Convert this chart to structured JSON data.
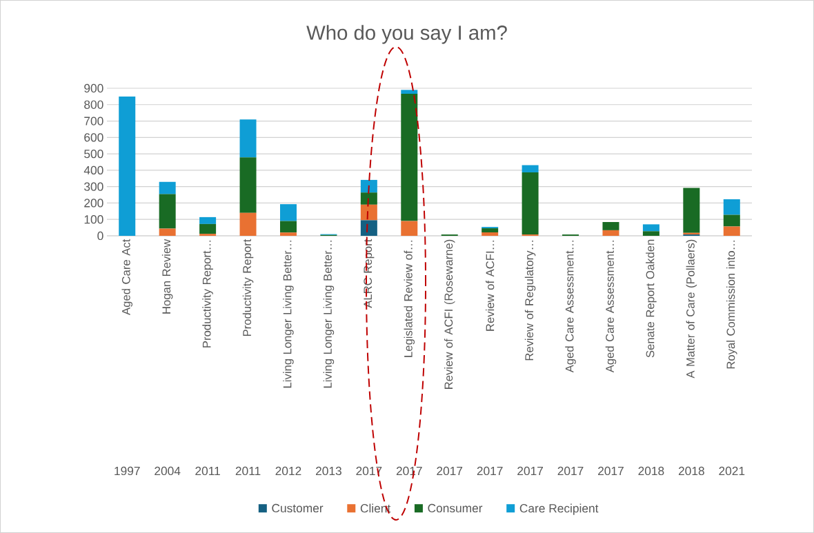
{
  "chart_data": {
    "type": "bar",
    "title": "Who do you say I am?",
    "stacked": true,
    "grid": "y",
    "legend": "bottom",
    "categories": [
      "Aged Care Act",
      "Hogan Review",
      "Productivity Report…",
      "Productivity Report",
      "Living Longer Living Better…",
      "Living Longer Living Better…",
      "ALRC Report",
      "Legislated Review of…",
      "Review of ACFI (Rosewarne)",
      "Review of ACFI…",
      "Review of Regulatory…",
      "Aged Care Assessment…",
      "Aged Care Assessment…",
      "Senate Report Oakden",
      "A Matter of Care (Pollaers)",
      "Royal Commission into…"
    ],
    "annotations": [
      "1997",
      "2004",
      "2011",
      "2011",
      "2012",
      "2013",
      "2017",
      "2017",
      "2017",
      "2017",
      "2017",
      "2017",
      "2017",
      "2018",
      "2018",
      "2021"
    ],
    "ylim": [
      0,
      900
    ],
    "yticks": [
      0,
      100,
      200,
      300,
      400,
      500,
      600,
      700,
      800,
      900
    ],
    "series": [
      {
        "name": "Customer",
        "color": "#156082",
        "values": [
          0,
          0,
          0,
          0,
          0,
          0,
          95,
          0,
          0,
          0,
          0,
          0,
          0,
          0,
          8,
          0
        ]
      },
      {
        "name": "Client",
        "color": "#e97132",
        "values": [
          0,
          44,
          12,
          140,
          20,
          0,
          95,
          90,
          0,
          21,
          8,
          0,
          34,
          0,
          10,
          57
        ]
      },
      {
        "name": "Consumer",
        "color": "#196b24",
        "values": [
          0,
          210,
          60,
          338,
          70,
          5,
          74,
          776,
          8,
          25,
          379,
          8,
          50,
          28,
          274,
          71
        ]
      },
      {
        "name": "Care Recipient",
        "color": "#0f9ed5",
        "values": [
          850,
          75,
          42,
          232,
          103,
          5,
          77,
          24,
          0,
          8,
          44,
          0,
          0,
          42,
          0,
          95
        ]
      }
    ]
  }
}
